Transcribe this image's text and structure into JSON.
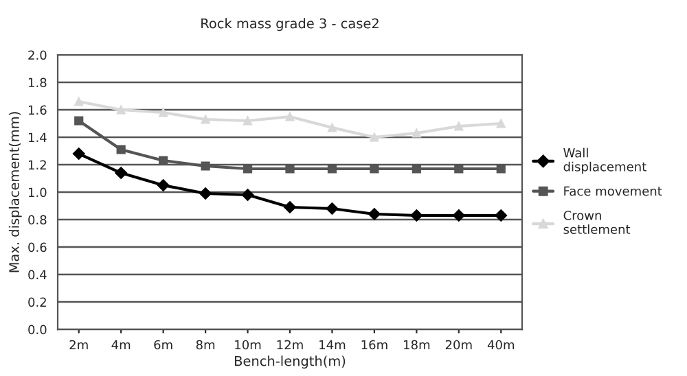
{
  "chart_data": {
    "type": "line",
    "title": "Rock mass grade 3 - case2",
    "xlabel": "Bench-length(m)",
    "ylabel": "Max. displacement(mm)",
    "categories": [
      "2m",
      "4m",
      "6m",
      "8m",
      "10m",
      "12m",
      "14m",
      "16m",
      "18m",
      "20m",
      "40m"
    ],
    "series": [
      {
        "name": "Wall\ndisplacement",
        "color": "#000000",
        "marker": "diamond",
        "values": [
          1.28,
          1.14,
          1.05,
          0.99,
          0.98,
          0.89,
          0.88,
          0.84,
          0.83,
          0.83,
          0.83
        ]
      },
      {
        "name": "Face movement",
        "color": "#555555",
        "marker": "square",
        "values": [
          1.52,
          1.31,
          1.23,
          1.19,
          1.17,
          1.17,
          1.17,
          1.17,
          1.17,
          1.17,
          1.17
        ]
      },
      {
        "name": "Crown\nsettlement",
        "color": "#d8d8d8",
        "marker": "triangle",
        "values": [
          1.66,
          1.6,
          1.58,
          1.53,
          1.52,
          1.55,
          1.47,
          1.4,
          1.43,
          1.48,
          1.5
        ]
      }
    ],
    "ylim": [
      0,
      2.0
    ],
    "yticks": [
      {
        "value": 0,
        "label": "0.0"
      },
      {
        "value": 0.2,
        "label": "0.2"
      },
      {
        "value": 0.4,
        "label": "0.4"
      },
      {
        "value": 0.6,
        "label": "0.6"
      },
      {
        "value": 0.8,
        "label": "0.8"
      },
      {
        "value": 1.0,
        "label": "1.0"
      },
      {
        "value": 1.2,
        "label": "1.2"
      },
      {
        "value": 1.4,
        "label": "1.4"
      },
      {
        "value": 1.6,
        "label": "1.6"
      },
      {
        "value": 1.8,
        "label": "1.8"
      },
      {
        "value": 2.0,
        "label": "2.0"
      }
    ],
    "grid": "y",
    "legend": "right"
  }
}
